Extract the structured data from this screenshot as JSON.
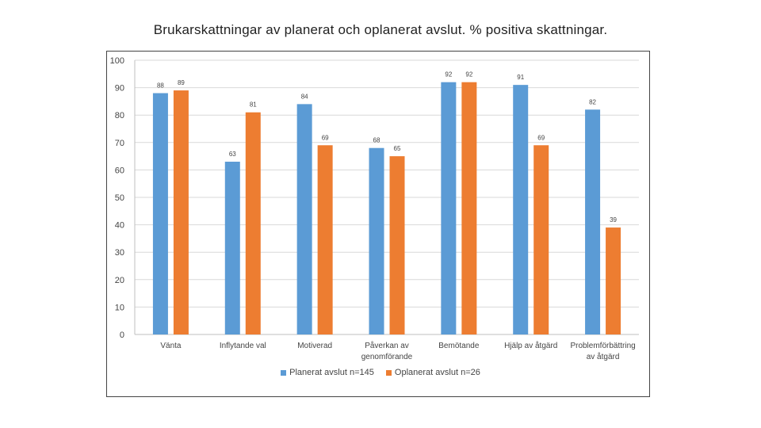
{
  "chart_data": {
    "type": "bar",
    "title": "Brukarskattningar av planerat och oplanerat avslut. % positiva skattningar.",
    "xlabel": "",
    "ylabel": "",
    "ylim": [
      0,
      100
    ],
    "yticks": [
      0,
      10,
      20,
      30,
      40,
      50,
      60,
      70,
      80,
      90,
      100
    ],
    "grid": true,
    "legend_position": "bottom",
    "categories": [
      [
        "Vänta"
      ],
      [
        "Inflytande val"
      ],
      [
        "Motiverad"
      ],
      [
        "Påverkan av",
        "genomförande"
      ],
      [
        "Bemötande"
      ],
      [
        "Hjälp av åtgärd"
      ],
      [
        "Problemförbättring",
        "av åtgärd"
      ]
    ],
    "series": [
      {
        "name": "Planerat avslut n=145",
        "color": "#5b9bd5",
        "values": [
          88,
          63,
          84,
          68,
          92,
          91,
          82
        ]
      },
      {
        "name": "Oplanerat avslut n=26",
        "color": "#ed7d31",
        "values": [
          89,
          81,
          69,
          65,
          92,
          69,
          39
        ]
      }
    ]
  }
}
